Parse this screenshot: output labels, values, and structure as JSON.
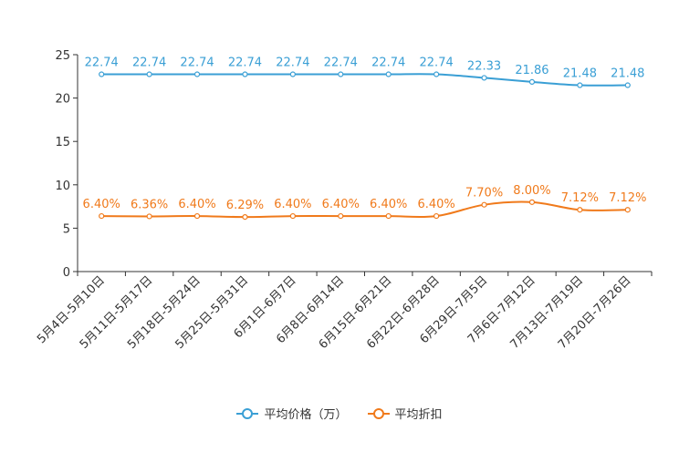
{
  "chart_data": {
    "type": "line",
    "title": "",
    "xlabel": "",
    "ylabel": "",
    "ylim": [
      0,
      25
    ],
    "yticks": [
      "0",
      "5",
      "10",
      "15",
      "20",
      "25"
    ],
    "categories": [
      "5月4日-5月10日",
      "5月11日-5月17日",
      "5月18日-5月24日",
      "5月25日-5月31日",
      "6月1日-6月7日",
      "6月8日-6月14日",
      "6月15日-6月21日",
      "6月22日-6月28日",
      "6月29日-7月5日",
      "7月6日-7月12日",
      "7月13日-7月19日",
      "7月20日-7月26日"
    ],
    "series": [
      {
        "name": "平均价格（万）",
        "color": "#3a9fd5",
        "values": [
          22.74,
          22.74,
          22.74,
          22.74,
          22.74,
          22.74,
          22.74,
          22.74,
          22.33,
          21.86,
          21.48,
          21.48
        ],
        "labels": [
          "22.74",
          "22.74",
          "22.74",
          "22.74",
          "22.74",
          "22.74",
          "22.74",
          "22.74",
          "22.33",
          "21.86",
          "21.48",
          "21.48"
        ]
      },
      {
        "name": "平均折扣",
        "color": "#f07a1b",
        "values": [
          6.4,
          6.36,
          6.4,
          6.29,
          6.4,
          6.4,
          6.4,
          6.4,
          7.7,
          8.0,
          7.12,
          7.12
        ],
        "labels": [
          "6.40%",
          "6.36%",
          "6.40%",
          "6.29%",
          "6.40%",
          "6.40%",
          "6.40%",
          "6.40%",
          "7.70%",
          "8.00%",
          "7.12%",
          "7.12%"
        ]
      }
    ],
    "legend_position": "bottom-center",
    "grid": false
  }
}
